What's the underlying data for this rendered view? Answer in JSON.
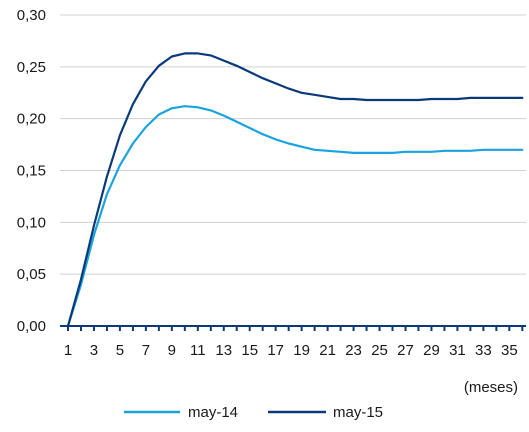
{
  "chart_data": {
    "type": "line",
    "title": "",
    "xlabel": "(meses)",
    "ylabel": "",
    "x": [
      1,
      2,
      3,
      4,
      5,
      6,
      7,
      8,
      9,
      10,
      11,
      12,
      13,
      14,
      15,
      16,
      17,
      18,
      19,
      20,
      21,
      22,
      23,
      24,
      25,
      26,
      27,
      28,
      29,
      30,
      31,
      32,
      33,
      34,
      35,
      36
    ],
    "x_tick_labels": [
      "1",
      "3",
      "5",
      "7",
      "9",
      "11",
      "13",
      "15",
      "17",
      "19",
      "21",
      "23",
      "25",
      "27",
      "29",
      "31",
      "33",
      "35"
    ],
    "xlim": [
      1,
      36
    ],
    "ylim": [
      0,
      0.3
    ],
    "y_ticks": [
      0,
      0.05,
      0.1,
      0.15,
      0.2,
      0.25,
      0.3
    ],
    "y_tick_labels": [
      "0,00",
      "0,05",
      "0,10",
      "0,15",
      "0,20",
      "0,25",
      "0,30"
    ],
    "grid": "horizontal",
    "legend_position": "bottom",
    "series": [
      {
        "name": "may-14",
        "color": "#1aa3dc",
        "values": [
          0.0,
          0.04,
          0.088,
          0.127,
          0.155,
          0.176,
          0.192,
          0.204,
          0.21,
          0.212,
          0.211,
          0.208,
          0.203,
          0.197,
          0.191,
          0.185,
          0.18,
          0.176,
          0.173,
          0.17,
          0.169,
          0.168,
          0.167,
          0.167,
          0.167,
          0.167,
          0.168,
          0.168,
          0.168,
          0.169,
          0.169,
          0.169,
          0.17,
          0.17,
          0.17,
          0.17
        ]
      },
      {
        "name": "may-15",
        "color": "#0a3a7a",
        "values": [
          0.0,
          0.045,
          0.097,
          0.144,
          0.184,
          0.214,
          0.236,
          0.251,
          0.26,
          0.263,
          0.263,
          0.261,
          0.256,
          0.251,
          0.245,
          0.239,
          0.234,
          0.229,
          0.225,
          0.223,
          0.221,
          0.219,
          0.219,
          0.218,
          0.218,
          0.218,
          0.218,
          0.218,
          0.219,
          0.219,
          0.219,
          0.22,
          0.22,
          0.22,
          0.22,
          0.22
        ]
      }
    ]
  }
}
